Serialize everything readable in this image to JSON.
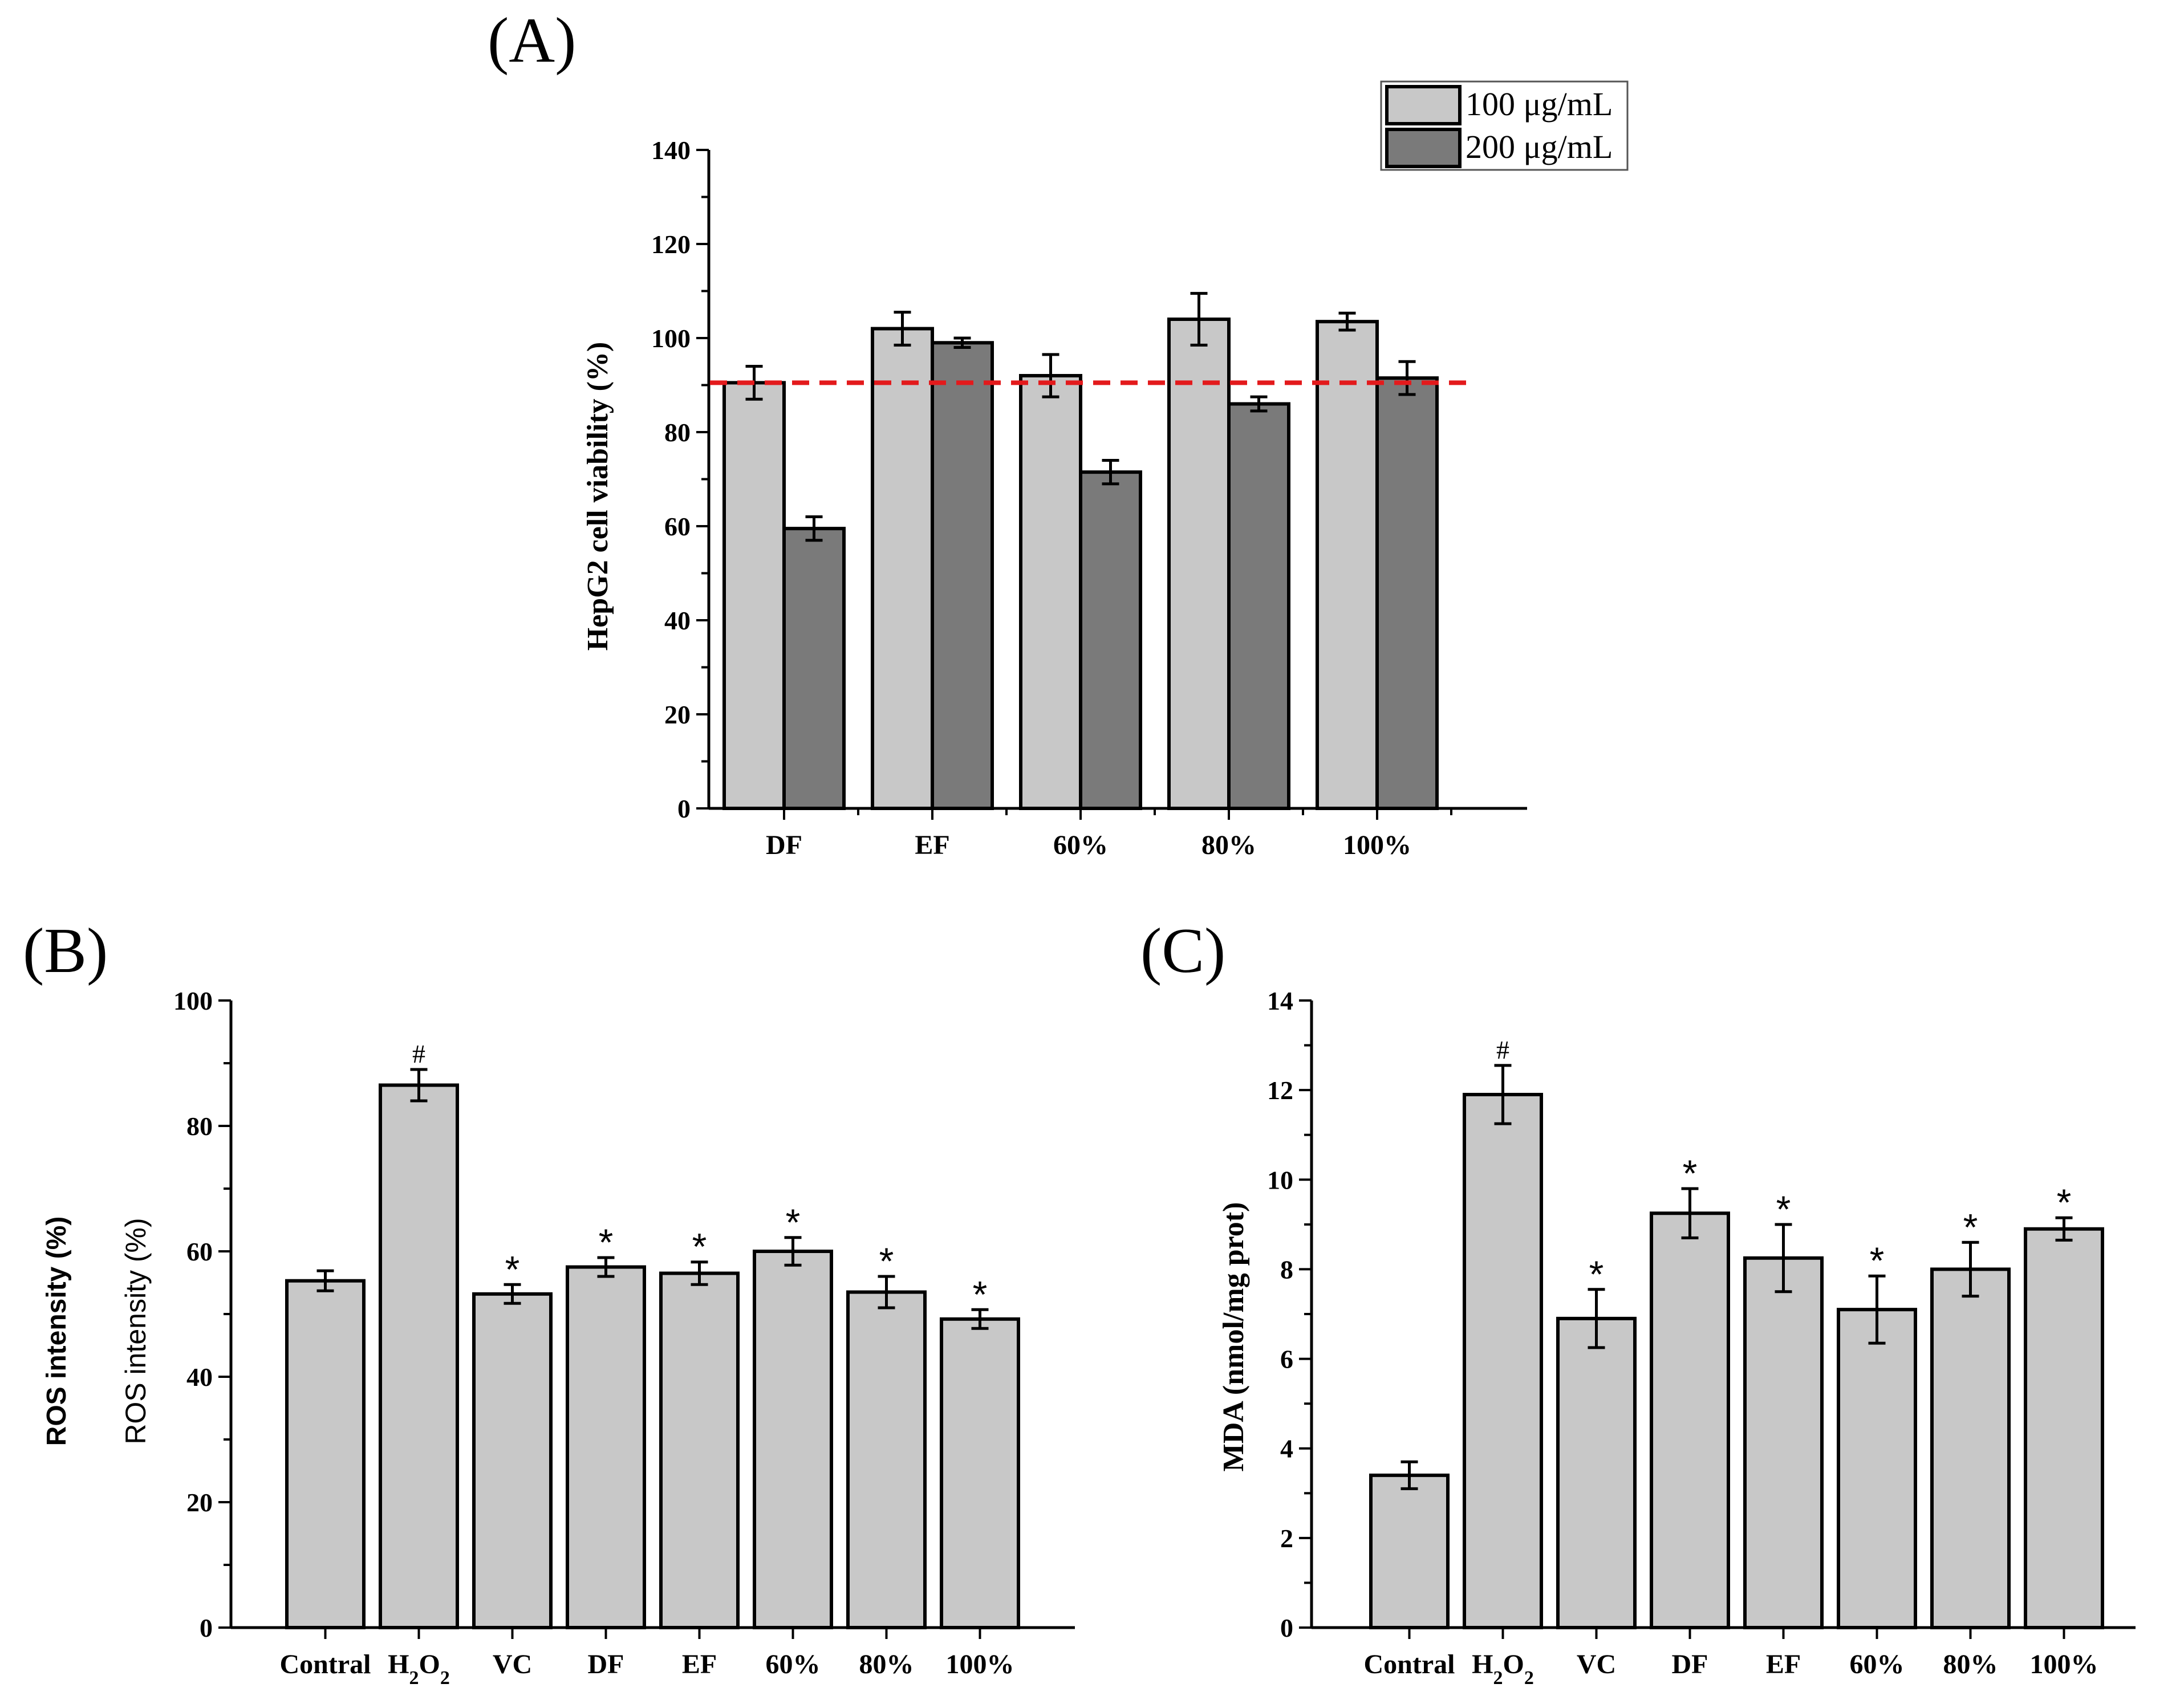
{
  "colors": {
    "light_bar": "#c8c8c8",
    "dark_bar": "#7a7a7a",
    "reference_line": "#e31a1c",
    "axis": "#000000"
  },
  "chart_data": [
    {
      "panel": "(A)",
      "type": "bar",
      "title": "",
      "xlabel": "",
      "ylabel": "HepG2 cell viability (%)",
      "ylim": [
        0,
        140
      ],
      "yticks": [
        0,
        20,
        40,
        60,
        80,
        100,
        120,
        140
      ],
      "categories": [
        "DF",
        "EF",
        "60%",
        "80%",
        "100%"
      ],
      "series": [
        {
          "name": "100 μg/mL",
          "values": [
            90.5,
            102.0,
            92.0,
            104.0,
            103.5
          ],
          "errors": [
            3.5,
            3.5,
            4.5,
            5.5,
            1.8
          ]
        },
        {
          "name": "200 μg/mL",
          "values": [
            59.5,
            99.0,
            71.5,
            86.0,
            91.5
          ],
          "errors": [
            2.5,
            1.0,
            2.5,
            1.5,
            3.5
          ]
        }
      ],
      "reference_line": 90.5,
      "legend": {
        "position": "top-right",
        "entries": [
          "100 μg/mL",
          "200 μg/mL"
        ]
      }
    },
    {
      "panel": "(B)",
      "type": "bar",
      "title": "",
      "xlabel": "",
      "ylabel": "ROS intensity (%)",
      "ylabel_outer": "ROS intensity (%)",
      "ylim": [
        0,
        100
      ],
      "yticks": [
        0,
        20,
        40,
        60,
        80,
        100
      ],
      "categories": [
        "Contral",
        "H2O2",
        "VC",
        "DF",
        "EF",
        "60%",
        "80%",
        "100%"
      ],
      "values": [
        55.3,
        86.5,
        53.2,
        57.5,
        56.5,
        60.0,
        53.5,
        49.2
      ],
      "errors": [
        1.6,
        2.5,
        1.5,
        1.5,
        1.8,
        2.2,
        2.5,
        1.5
      ],
      "significance": [
        "",
        "#",
        "*",
        "*",
        "*",
        "*",
        "*",
        "*"
      ]
    },
    {
      "panel": "(C)",
      "type": "bar",
      "title": "",
      "xlabel": "",
      "ylabel": "MDA (nmol/mg prot)",
      "ylim": [
        0,
        14
      ],
      "yticks": [
        0,
        2,
        4,
        6,
        8,
        10,
        12,
        14
      ],
      "categories": [
        "Contral",
        "H2O2",
        "VC",
        "DF",
        "EF",
        "60%",
        "80%",
        "100%"
      ],
      "values": [
        3.4,
        11.9,
        6.9,
        9.25,
        8.25,
        7.1,
        8.0,
        8.9
      ],
      "errors": [
        0.3,
        0.65,
        0.65,
        0.55,
        0.75,
        0.75,
        0.6,
        0.25
      ],
      "significance": [
        "",
        "#",
        "*",
        "*",
        "*",
        "*",
        "*",
        "*"
      ]
    }
  ]
}
